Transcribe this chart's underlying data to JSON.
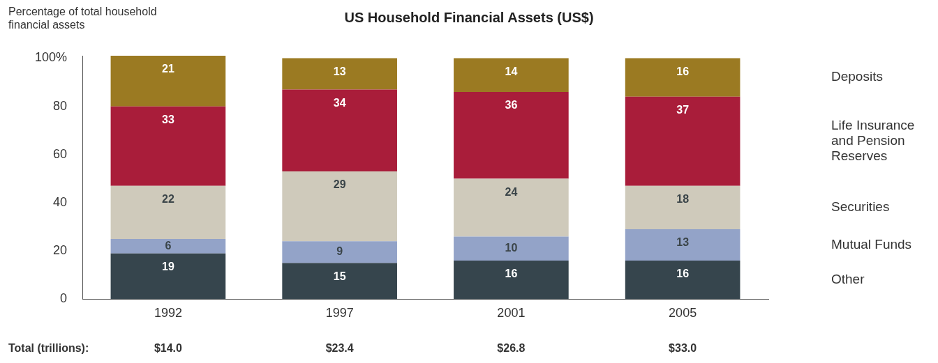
{
  "chart_data": {
    "type": "bar",
    "title": "US Household Financial Assets (US$)",
    "ylabel": "Percentage of total household financial assets",
    "categories": [
      "1992",
      "1997",
      "2001",
      "2005"
    ],
    "stacked": true,
    "series": [
      {
        "name": "Other",
        "color": "#36454d",
        "values": [
          19,
          15,
          16,
          16
        ]
      },
      {
        "name": "Mutual Funds",
        "color": "#93a3c8",
        "values": [
          6,
          9,
          10,
          13
        ]
      },
      {
        "name": "Securities",
        "color": "#cfcabb",
        "values": [
          22,
          29,
          24,
          18
        ]
      },
      {
        "name": "Life Insurance and Pension Reserves",
        "color": "#a91d3a",
        "values": [
          33,
          34,
          36,
          37
        ]
      },
      {
        "name": "Deposits",
        "color": "#9b7a22",
        "values": [
          21,
          13,
          14,
          16
        ]
      }
    ],
    "ylim": [
      0,
      101
    ],
    "yticks": [
      0,
      20,
      40,
      60,
      80,
      {
        "value": 100,
        "label": "100%"
      }
    ],
    "grid": false,
    "legend": false,
    "data_labels": true,
    "annotations": [
      "Total (trillions):",
      "$14.0",
      "$23.4",
      "$26.8",
      "$33.0"
    ]
  }
}
